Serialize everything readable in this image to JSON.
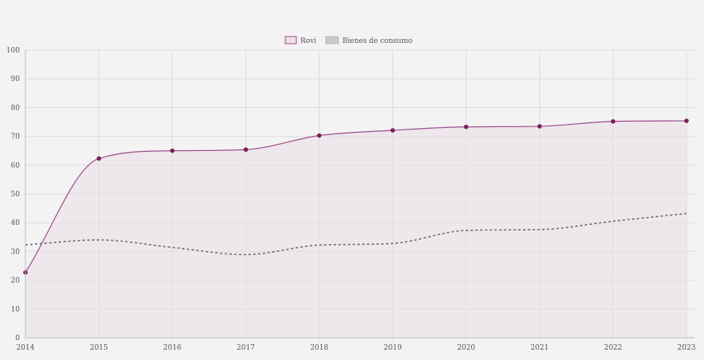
{
  "chart_data": {
    "type": "line",
    "x": [
      "2014",
      "2015",
      "2016",
      "2017",
      "2018",
      "2019",
      "2020",
      "2021",
      "2022",
      "2023"
    ],
    "ylim": [
      0,
      100
    ],
    "yticks": [
      "0",
      "10",
      "20",
      "30",
      "40",
      "50",
      "60",
      "70",
      "80",
      "90",
      "100"
    ],
    "grid": true,
    "legend_position": "top-center",
    "series": [
      {
        "name": "Rovi",
        "values": [
          22.7,
          62.3,
          65.0,
          65.4,
          70.3,
          72.1,
          73.3,
          73.5,
          75.2,
          75.4
        ],
        "color": "#9c4d8a",
        "fill": "#eadfe6",
        "style": "solid"
      },
      {
        "name": "Bienes de consumo",
        "values": [
          32.3,
          34.0,
          31.4,
          28.9,
          32.2,
          32.8,
          37.3,
          37.6,
          40.5,
          43.2
        ],
        "color": "#6e6e6e",
        "style": "dashed"
      }
    ]
  }
}
